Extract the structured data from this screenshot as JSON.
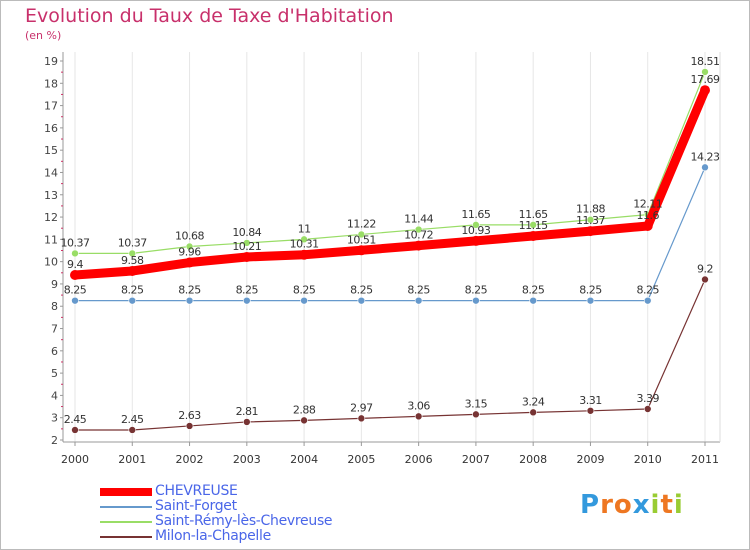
{
  "chart_data": {
    "type": "line",
    "title": "Evolution du Taux de Taxe d'Habitation",
    "ylabel": "(en %)",
    "xlabel": "",
    "x": [
      "2000",
      "2001",
      "2002",
      "2003",
      "2004",
      "2005",
      "2006",
      "2007",
      "2008",
      "2009",
      "2010",
      "2011"
    ],
    "ylim": [
      2,
      19
    ],
    "yticks": [
      "2",
      "3",
      "4",
      "5",
      "6",
      "7",
      "8",
      "9",
      "10",
      "11",
      "12",
      "13",
      "14",
      "15",
      "16",
      "17",
      "18",
      "19"
    ],
    "legend_position": "bottom-left",
    "series": [
      {
        "name": "CHEVREUSE",
        "color": "#ff0000",
        "values": [
          9.4,
          9.58,
          9.96,
          10.21,
          10.31,
          10.51,
          10.72,
          10.93,
          11.15,
          11.37,
          11.6,
          17.69
        ],
        "labels": [
          "9.4",
          "9.58",
          "9.96",
          "10.21",
          "10.31",
          "10.51",
          "10.72",
          "10.93",
          "11.15",
          "11.37",
          "11.6",
          "17.69"
        ]
      },
      {
        "name": "Saint-Forget",
        "color": "#6699cc",
        "values": [
          8.25,
          8.25,
          8.25,
          8.25,
          8.25,
          8.25,
          8.25,
          8.25,
          8.25,
          8.25,
          8.25,
          14.23
        ],
        "labels": [
          "8.25",
          "8.25",
          "8.25",
          "8.25",
          "8.25",
          "8.25",
          "8.25",
          "8.25",
          "8.25",
          "8.25",
          "8.25",
          "14.23"
        ]
      },
      {
        "name": "Saint-Rémy-lès-Chevreuse",
        "color": "#99dd66",
        "values": [
          10.37,
          10.37,
          10.68,
          10.84,
          11,
          11.22,
          11.44,
          11.65,
          11.65,
          11.88,
          12.11,
          18.51
        ],
        "labels": [
          "10.37",
          "10.37",
          "10.68",
          "10.84",
          "11",
          "11.22",
          "11.44",
          "11.65",
          "11.65",
          "11.88",
          "12.11",
          "18.51"
        ]
      },
      {
        "name": "Milon-la-Chapelle",
        "color": "#773333",
        "values": [
          2.45,
          2.45,
          2.63,
          2.81,
          2.88,
          2.97,
          3.06,
          3.15,
          3.24,
          3.31,
          3.39,
          9.2
        ],
        "labels": [
          "2.45",
          "2.45",
          "2.63",
          "2.81",
          "2.88",
          "2.97",
          "3.06",
          "3.15",
          "3.24",
          "3.31",
          "3.39",
          "9.2"
        ]
      }
    ]
  },
  "logo": {
    "letters": [
      "P",
      "r",
      "o",
      "x",
      "i",
      "t",
      "i"
    ],
    "colors": [
      "#3399dd",
      "#ee7722",
      "#ee7722",
      "#3399dd",
      "#99cc33",
      "#ee7722",
      "#99cc33"
    ]
  }
}
